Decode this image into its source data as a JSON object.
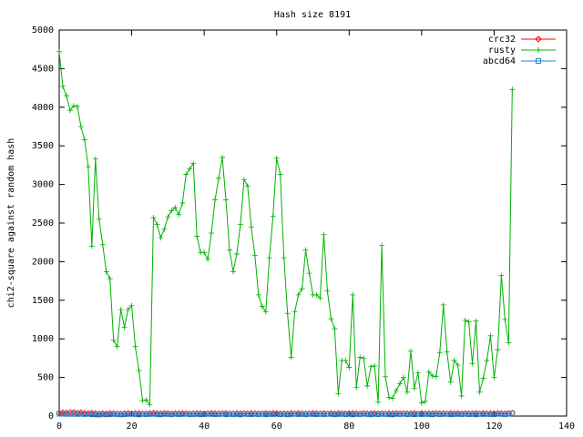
{
  "chart_data": {
    "type": "line",
    "title": "Hash size 8191",
    "y_label": "chi2-square against random hash",
    "xlim": [
      0,
      140
    ],
    "xticks": [
      0,
      20,
      40,
      60,
      80,
      100,
      120,
      140
    ],
    "ylim": [
      0,
      5000
    ],
    "yticks": [
      0,
      500,
      1000,
      1500,
      2000,
      2500,
      3000,
      3500,
      4000,
      4500,
      5000
    ],
    "legend": "top-right",
    "x": [
      0,
      1,
      2,
      3,
      4,
      5,
      6,
      7,
      8,
      9,
      10,
      11,
      12,
      13,
      14,
      15,
      16,
      17,
      18,
      19,
      20,
      21,
      22,
      23,
      24,
      25,
      26,
      27,
      28,
      29,
      30,
      31,
      32,
      33,
      34,
      35,
      36,
      37,
      38,
      39,
      40,
      41,
      42,
      43,
      44,
      45,
      46,
      47,
      48,
      49,
      50,
      51,
      52,
      53,
      54,
      55,
      56,
      57,
      58,
      59,
      60,
      61,
      62,
      63,
      64,
      65,
      66,
      67,
      68,
      69,
      70,
      71,
      72,
      73,
      74,
      75,
      76,
      77,
      78,
      79,
      80,
      81,
      82,
      83,
      84,
      85,
      86,
      87,
      88,
      89,
      90,
      91,
      92,
      93,
      94,
      95,
      96,
      97,
      98,
      99,
      100,
      101,
      102,
      103,
      104,
      105,
      106,
      107,
      108,
      109,
      110,
      111,
      112,
      113,
      114,
      115,
      116,
      117,
      118,
      119,
      120,
      121,
      122,
      123,
      124,
      125
    ],
    "series": [
      {
        "name": "crc32",
        "color": "#ff0000",
        "values": [
          40,
          45,
          42,
          50,
          48,
          44,
          46,
          40,
          38,
          42,
          36,
          30,
          35,
          32,
          38,
          34,
          30,
          28,
          33,
          36,
          30,
          34,
          38,
          32,
          30,
          36,
          40,
          35,
          32,
          38,
          34,
          30,
          36,
          33,
          38,
          35,
          30,
          32,
          36,
          34,
          30,
          33,
          37,
          35,
          31,
          34,
          38,
          32,
          30,
          36,
          33,
          35,
          31,
          37,
          34,
          30,
          32,
          36,
          33,
          38,
          35,
          31,
          34,
          30,
          36,
          32,
          38,
          34,
          30,
          33,
          37,
          35,
          31,
          34,
          30,
          36,
          32,
          38,
          35,
          31,
          33,
          37,
          34,
          30,
          36,
          32,
          35,
          38,
          31,
          34,
          30,
          36,
          33,
          37,
          32,
          35,
          31,
          34,
          38,
          30,
          36,
          33,
          35,
          32,
          37,
          31,
          34,
          30,
          36,
          33,
          38,
          32,
          35,
          31,
          34,
          37,
          30,
          36,
          33,
          35,
          32,
          38,
          34,
          31,
          36,
          40
        ]
      },
      {
        "name": "rusty",
        "color": "#00b000",
        "values": [
          4720,
          4270,
          4150,
          3960,
          4020,
          4010,
          3750,
          3580,
          3230,
          2200,
          3330,
          2550,
          2220,
          1870,
          1780,
          980,
          900,
          1380,
          1150,
          1380,
          1430,
          900,
          590,
          200,
          210,
          150,
          2570,
          2480,
          2310,
          2420,
          2580,
          2660,
          2700,
          2610,
          2760,
          3130,
          3200,
          3270,
          2330,
          2120,
          2120,
          2030,
          2370,
          2800,
          3080,
          3350,
          2800,
          2150,
          1870,
          2100,
          2480,
          3060,
          2980,
          2450,
          2080,
          1570,
          1420,
          1350,
          2050,
          2590,
          3340,
          3130,
          2050,
          1330,
          760,
          1350,
          1570,
          1650,
          2150,
          1850,
          1570,
          1570,
          1530,
          2350,
          1620,
          1260,
          1130,
          290,
          720,
          720,
          630,
          1570,
          370,
          760,
          750,
          390,
          640,
          650,
          180,
          2210,
          510,
          240,
          230,
          330,
          420,
          500,
          310,
          840,
          360,
          560,
          170,
          190,
          570,
          520,
          510,
          820,
          1440,
          830,
          440,
          720,
          660,
          260,
          1240,
          1220,
          680,
          1230,
          310,
          490,
          720,
          1040,
          500,
          860,
          1820,
          1250,
          950,
          4230
        ]
      },
      {
        "name": "abcd64",
        "color": "#2080d0",
        "values": [
          30,
          28,
          32,
          26,
          30,
          25,
          28,
          24,
          27,
          22,
          20,
          18,
          24,
          20,
          22,
          26,
          24,
          20,
          22,
          25,
          28,
          24,
          20,
          26,
          22,
          25,
          28,
          23,
          20,
          26,
          24,
          21,
          27,
          23,
          25,
          28,
          22,
          24,
          26,
          21,
          23,
          27,
          25,
          22,
          24,
          28,
          21,
          26,
          23,
          25,
          20,
          27,
          24,
          22,
          26,
          23,
          28,
          21,
          25,
          24,
          27,
          22,
          26,
          20,
          24,
          28,
          23,
          25,
          21,
          27,
          24,
          22,
          26,
          23,
          28,
          25,
          21,
          24,
          27,
          22,
          26,
          20,
          25,
          23,
          28,
          24,
          21,
          26,
          22,
          27,
          25,
          23,
          20,
          26,
          24,
          28,
          22,
          25,
          21,
          27,
          23,
          26,
          24,
          20,
          28,
          22,
          25,
          27,
          21,
          24,
          26,
          23,
          28,
          22,
          25,
          20,
          27,
          24,
          26,
          23,
          21,
          28,
          25,
          22,
          30,
          34
        ]
      }
    ]
  }
}
